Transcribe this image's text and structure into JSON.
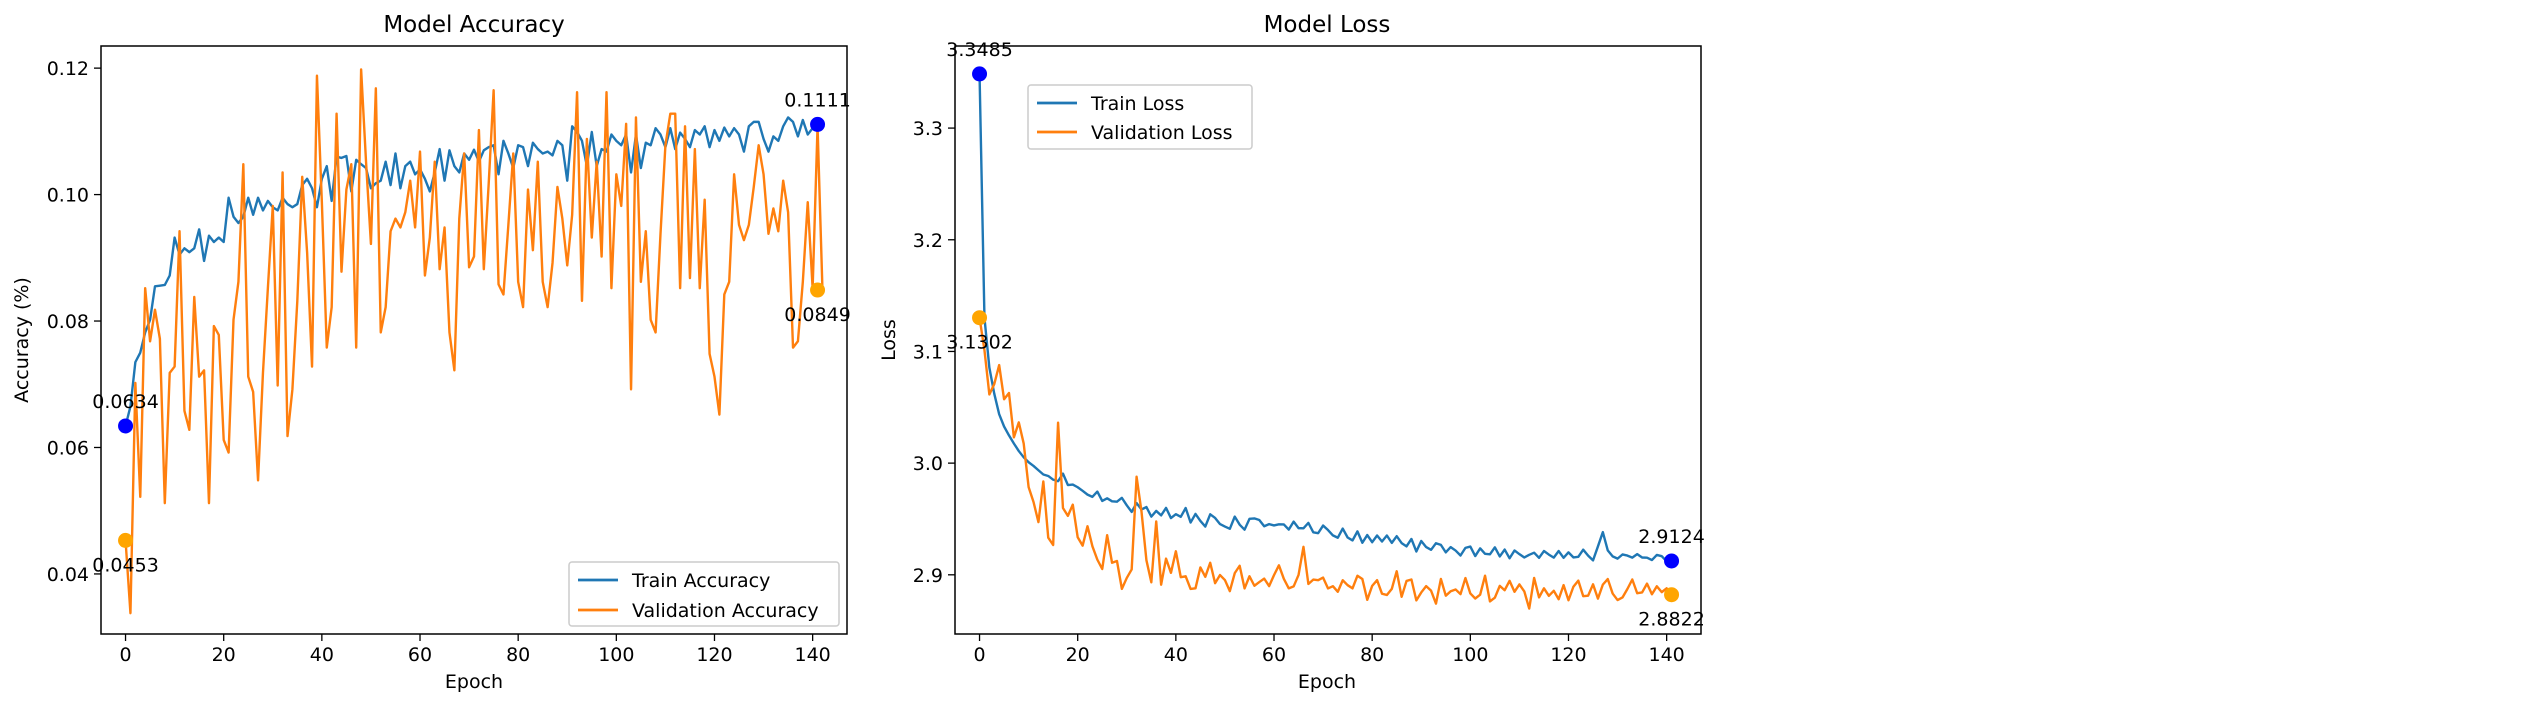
{
  "chart_data": [
    {
      "type": "line",
      "title": "Model Accuracy",
      "xlabel": "Epoch",
      "ylabel": "Accuracy (%)",
      "xlim": [
        -5,
        147
      ],
      "ylim": [
        0.0305,
        0.1235
      ],
      "xticks": [
        0,
        20,
        40,
        60,
        80,
        100,
        120,
        140
      ],
      "yticks": [
        0.04,
        0.06,
        0.08,
        0.1,
        0.12
      ],
      "ytick_labels": [
        "0.04",
        "0.06",
        "0.08",
        "0.10",
        "0.12"
      ],
      "grid": false,
      "legend_position": "bottom-right",
      "series": [
        {
          "name": "Train Accuracy",
          "color": "#1f77b4",
          "values": [
            0.0634,
            0.0665,
            0.0735,
            0.075,
            0.0782,
            0.0802,
            0.0855,
            0.0856,
            0.0857,
            0.0872,
            0.0932,
            0.0905,
            0.0915,
            0.0909,
            0.0915,
            0.0945,
            0.0895,
            0.0935,
            0.0925,
            0.0932,
            0.0925,
            0.0995,
            0.0965,
            0.0955,
            0.0965,
            0.0995,
            0.0968,
            0.0995,
            0.0975,
            0.099,
            0.098,
            0.0975,
            0.0995,
            0.0985,
            0.098,
            0.0985,
            0.1015,
            0.1025,
            0.101,
            0.098,
            0.1025,
            0.1045,
            0.099,
            0.106,
            0.1058,
            0.1061,
            0.1005,
            0.1055,
            0.1048,
            0.1042,
            0.101,
            0.1018,
            0.1022,
            0.1052,
            0.1015,
            0.1065,
            0.101,
            0.1045,
            0.1052,
            0.1032,
            0.104,
            0.1025,
            0.1005,
            0.1035,
            0.1072,
            0.1022,
            0.107,
            0.1045,
            0.1035,
            0.1065,
            0.1055,
            0.1071,
            0.1052,
            0.107,
            0.1075,
            0.1078,
            0.1032,
            0.1085,
            0.1065,
            0.1042,
            0.1078,
            0.1075,
            0.1045,
            0.1082,
            0.1072,
            0.1065,
            0.1068,
            0.1062,
            0.1085,
            0.1078,
            0.1022,
            0.1108,
            0.1099,
            0.1085,
            0.1045,
            0.1099,
            0.1045,
            0.1072,
            0.1068,
            0.1095,
            0.1085,
            0.1078,
            0.1095,
            0.1035,
            0.1095,
            0.1042,
            0.1082,
            0.1078,
            0.1105,
            0.1095,
            0.1075,
            0.1105,
            0.1072,
            0.1098,
            0.1088,
            0.1075,
            0.1102,
            0.1095,
            0.1108,
            0.1075,
            0.1102,
            0.1085,
            0.1106,
            0.1092,
            0.1105,
            0.1095,
            0.1068,
            0.1108,
            0.1115,
            0.1115,
            0.1088,
            0.1068,
            0.1092,
            0.1085,
            0.1108,
            0.1122,
            0.1115,
            0.1092,
            0.1118,
            0.1095,
            0.1105,
            0.1108,
            0.1111
          ]
        },
        {
          "name": "Validation Accuracy",
          "color": "#ff7f0e",
          "values": [
            0.0453,
            0.0338,
            0.0702,
            0.0522,
            0.0852,
            0.0768,
            0.0818,
            0.0772,
            0.0512,
            0.0718,
            0.0728,
            0.0942,
            0.0658,
            0.0628,
            0.0838,
            0.0712,
            0.0722,
            0.0512,
            0.0792,
            0.0778,
            0.0612,
            0.0592,
            0.0802,
            0.0862,
            0.1048,
            0.0712,
            0.0688,
            0.0548,
            0.0718,
            0.0852,
            0.0982,
            0.0698,
            0.1035,
            0.0618,
            0.0692,
            0.0832,
            0.1028,
            0.0908,
            0.0728,
            0.1188,
            0.0988,
            0.0758,
            0.0822,
            0.1128,
            0.0878,
            0.1008,
            0.1048,
            0.0758,
            0.1198,
            0.1052,
            0.0922,
            0.1168,
            0.0782,
            0.0822,
            0.0942,
            0.0962,
            0.0948,
            0.0972,
            0.1022,
            0.0948,
            0.1068,
            0.0872,
            0.0932,
            0.1052,
            0.0882,
            0.0948,
            0.0782,
            0.0722,
            0.0962,
            0.1065,
            0.0885,
            0.0902,
            0.1102,
            0.0882,
            0.1018,
            0.1165,
            0.0858,
            0.0842,
            0.0952,
            0.1065,
            0.0862,
            0.0822,
            0.1008,
            0.0912,
            0.1052,
            0.0862,
            0.0822,
            0.0892,
            0.1012,
            0.0962,
            0.0888,
            0.0968,
            0.1162,
            0.0832,
            0.1088,
            0.0932,
            0.1052,
            0.0902,
            0.1162,
            0.0852,
            0.1032,
            0.0982,
            0.1112,
            0.0692,
            0.1122,
            0.0862,
            0.0942,
            0.0802,
            0.0782,
            0.0938,
            0.1078,
            0.1128,
            0.1128,
            0.0852,
            0.1108,
            0.0868,
            0.1072,
            0.0852,
            0.0992,
            0.0748,
            0.0712,
            0.0652,
            0.0842,
            0.0862,
            0.1032,
            0.0952,
            0.0928,
            0.0952,
            0.1012,
            0.1078,
            0.1032,
            0.0938,
            0.0978,
            0.0942,
            0.1022,
            0.0972,
            0.0758,
            0.0768,
            0.0862,
            0.0988,
            0.0852,
            0.1108,
            0.0849
          ]
        }
      ],
      "annotations": [
        {
          "x": 0,
          "y": 0.0634,
          "text": "0.0634",
          "color": "#0000ff",
          "position": "above"
        },
        {
          "x": 0,
          "y": 0.0453,
          "text": "0.0453",
          "color": "#ffa500",
          "position": "below"
        },
        {
          "x": 141,
          "y": 0.1111,
          "text": "0.1111",
          "color": "#0000ff",
          "position": "above"
        },
        {
          "x": 141,
          "y": 0.0849,
          "text": "0.0849",
          "color": "#ffa500",
          "position": "below"
        }
      ]
    },
    {
      "type": "line",
      "title": "Model Loss",
      "xlabel": "Epoch",
      "ylabel": "Loss",
      "xlim": [
        -5,
        147
      ],
      "ylim": [
        2.847,
        3.3735
      ],
      "xticks": [
        0,
        20,
        40,
        60,
        80,
        100,
        120,
        140
      ],
      "yticks": [
        2.9,
        3.0,
        3.1,
        3.2,
        3.3
      ],
      "ytick_labels": [
        "2.9",
        "3.0",
        "3.1",
        "3.2",
        "3.3"
      ],
      "grid": false,
      "legend_position": "top-left",
      "series": [
        {
          "name": "Train Loss",
          "color": "#1f77b4",
          "values": [
            3.3485,
            3.1302,
            3.0855,
            3.0622,
            3.0438,
            3.0328,
            3.0248,
            3.0176,
            3.0108,
            3.0052,
            3.0008,
            2.9975,
            2.9936,
            2.9898,
            2.9885,
            2.9852,
            2.9838,
            2.9906,
            2.9804,
            2.9808,
            2.9784,
            2.9752,
            2.9718,
            2.9698,
            2.9745,
            2.9661,
            2.9685,
            2.9658,
            2.9655,
            2.9689,
            2.9622,
            2.9563,
            2.9642,
            2.9585,
            2.9607,
            2.9521,
            2.9572,
            2.9532,
            2.9599,
            2.9508,
            2.9543,
            2.9519,
            2.9598,
            2.9468,
            2.9545,
            2.9482,
            2.9432,
            2.9542,
            2.9509,
            2.9454,
            2.9432,
            2.9412,
            2.9521,
            2.9449,
            2.9404,
            2.9501,
            2.9505,
            2.9491,
            2.9435,
            2.9454,
            2.9442,
            2.9452,
            2.9451,
            2.9405,
            2.9476,
            2.9418,
            2.9416,
            2.9465,
            2.9381,
            2.9373,
            2.9441,
            2.9401,
            2.9353,
            2.9332,
            2.9414,
            2.9334,
            2.9308,
            2.9389,
            2.9287,
            2.9356,
            2.9292,
            2.9352,
            2.9298,
            2.9352,
            2.9286,
            2.9346,
            2.9284,
            2.9255,
            2.9321,
            2.9209,
            2.9303,
            2.9248,
            2.9224,
            2.9283,
            2.9268,
            2.9201,
            2.9248,
            2.9217,
            2.9173,
            2.9241,
            2.9253,
            2.9168,
            2.9237,
            2.9188,
            2.9184,
            2.9246,
            2.9164,
            2.9226,
            2.9148,
            2.9218,
            2.9185,
            2.9155,
            2.9179,
            2.9198,
            2.9152,
            2.9213,
            2.9181,
            2.9154,
            2.9213,
            2.9152,
            2.9201,
            2.9156,
            2.9161,
            2.9225,
            2.9172,
            2.9129,
            2.9254,
            2.9382,
            2.9219,
            2.9165,
            2.9145,
            2.9182,
            2.9172,
            2.9154,
            2.9185,
            2.9155,
            2.9153,
            2.9132,
            2.9178,
            2.9167,
            2.9121,
            2.9124
          ],
          "end_value": 2.9124
        },
        {
          "name": "Validation Loss",
          "color": "#ff7f0e",
          "values": [
            3.1302,
            3.1012,
            3.0615,
            3.0708,
            3.0878,
            3.0572,
            3.0628,
            3.0231,
            3.0365,
            3.0175,
            2.9785,
            2.9652,
            2.9472,
            2.9836,
            2.9332,
            2.9267,
            3.0362,
            2.9598,
            2.9528,
            2.9628,
            2.9336,
            2.9261,
            2.9435,
            2.9255,
            2.9136,
            2.9052,
            2.9355,
            2.9108,
            2.9124,
            2.8874,
            2.8972,
            2.9048,
            2.9878,
            2.9566,
            2.9131,
            2.8933,
            2.9478,
            2.8912,
            2.9145,
            2.9018,
            2.9211,
            2.8979,
            2.8987,
            2.8874,
            2.8879,
            2.9066,
            2.8982,
            2.9108,
            2.8925,
            2.8998,
            2.8953,
            2.8854,
            2.9015,
            2.9081,
            2.8878,
            2.8987,
            2.8902,
            2.8935,
            2.8966,
            2.8899,
            2.8997,
            2.9085,
            2.8964,
            2.8879,
            2.8896,
            2.8999,
            2.9251,
            2.8918,
            2.8957,
            2.8952,
            2.8975,
            2.8878,
            2.8898,
            2.8848,
            2.8951,
            2.8907,
            2.8879,
            2.8992,
            2.8962,
            2.8776,
            2.8901,
            2.8952,
            2.8831,
            2.8819,
            2.8874,
            2.9032,
            2.8803,
            2.8945,
            2.8958,
            2.8771,
            2.8842,
            2.8899,
            2.8858,
            2.8742,
            2.8963,
            2.8813,
            2.8853,
            2.8869,
            2.8827,
            2.8971,
            2.8833,
            2.8788,
            2.8822,
            2.8992,
            2.8762,
            2.8795,
            2.8901,
            2.8862,
            2.8946,
            2.8848,
            2.8914,
            2.8851,
            2.8698,
            2.8972,
            2.8798,
            2.8879,
            2.8812,
            2.8857,
            2.8781,
            2.8908,
            2.8772,
            2.8893,
            2.8948,
            2.8809,
            2.8813,
            2.8915,
            2.8787,
            2.8912,
            2.8962,
            2.8832,
            2.8774,
            2.8797,
            2.8873,
            2.8958,
            2.8835,
            2.8842,
            2.8921,
            2.8826,
            2.8897,
            2.8845,
            2.8879,
            2.8822
          ],
          "end_value": 2.8822
        }
      ],
      "annotations": [
        {
          "x": 0,
          "y": 3.3485,
          "text": "3.3485",
          "color": "#0000ff",
          "position": "above"
        },
        {
          "x": 0,
          "y": 3.1302,
          "text": "3.1302",
          "color": "#ffa500",
          "position": "below"
        },
        {
          "x": 141,
          "y": 2.9124,
          "text": "2.9124",
          "color": "#0000ff",
          "position": "above"
        },
        {
          "x": 141,
          "y": 2.8822,
          "text": "2.8822",
          "color": "#ffa500",
          "position": "below"
        }
      ]
    }
  ]
}
